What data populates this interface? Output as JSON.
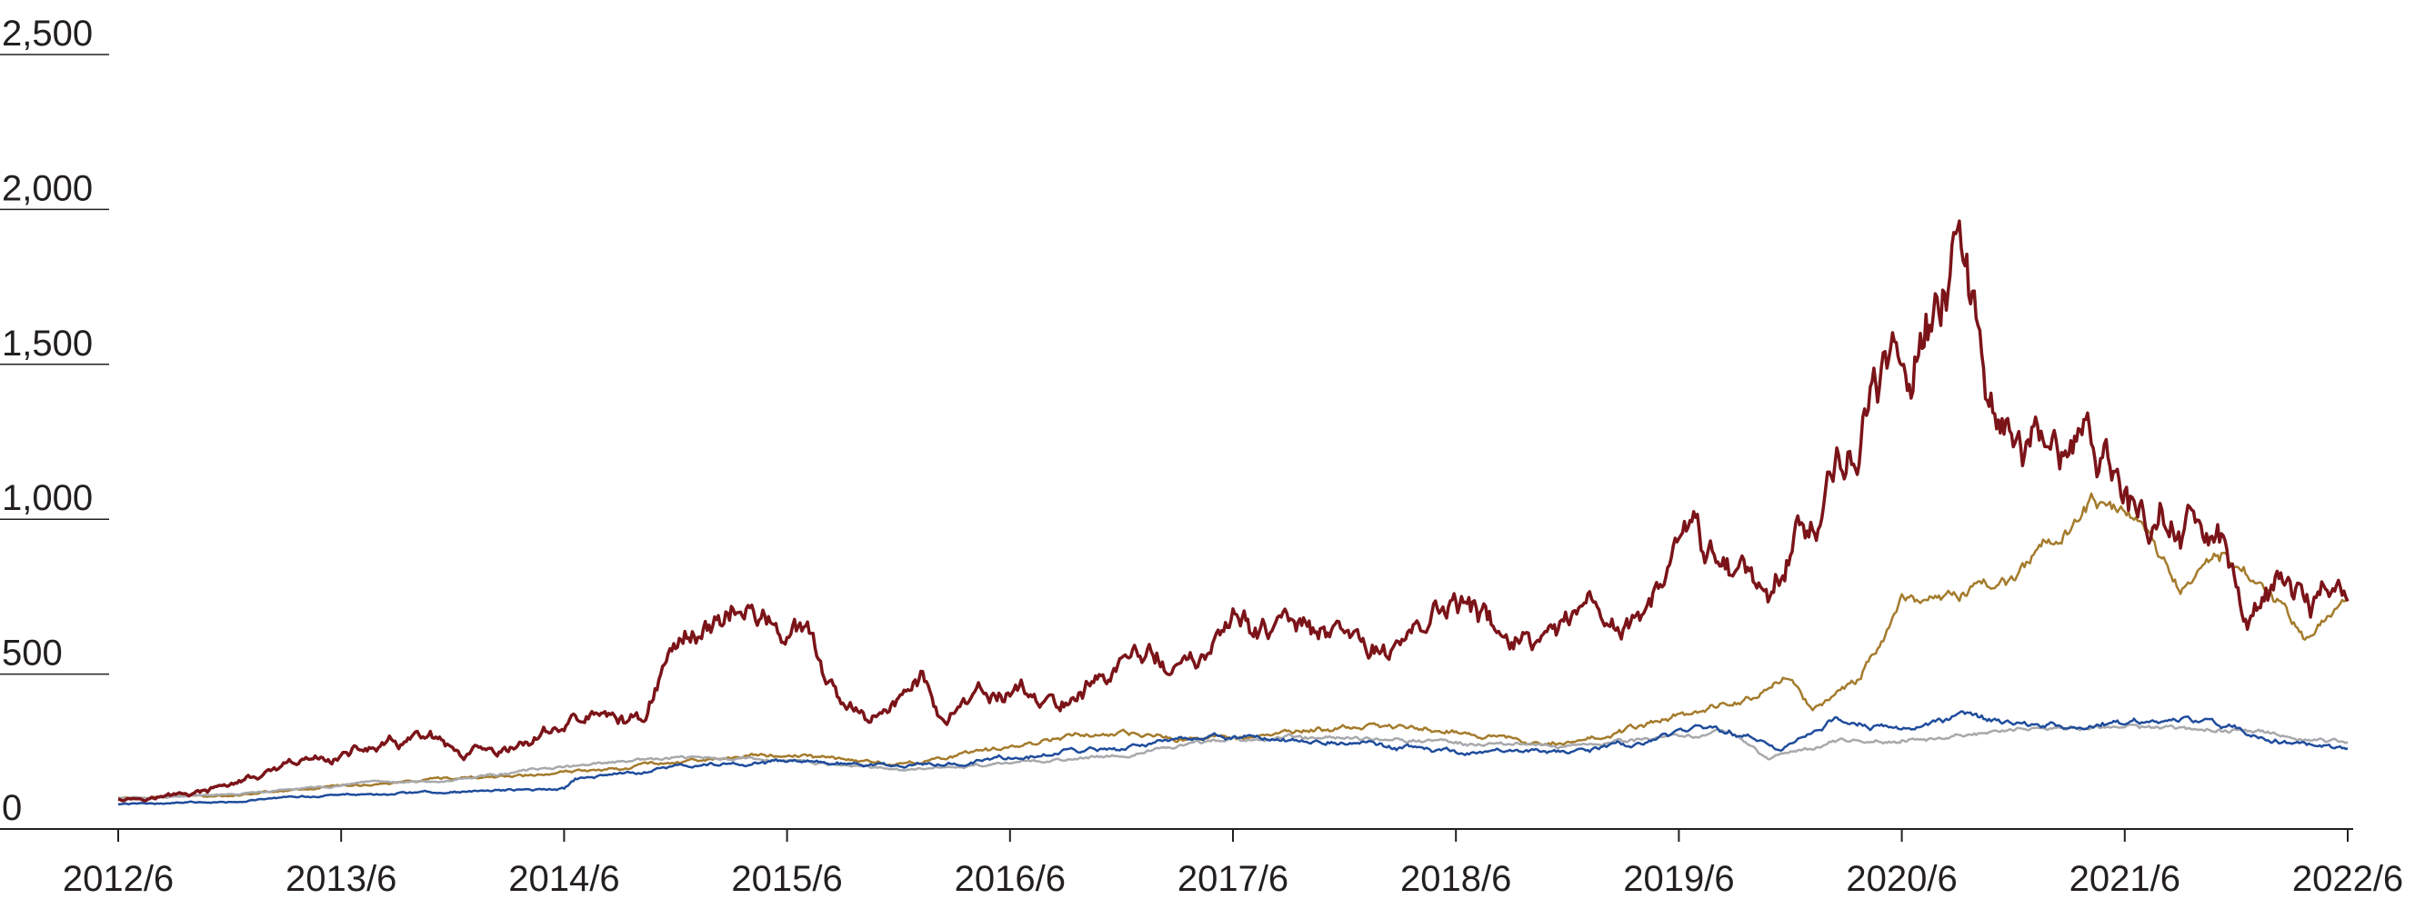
{
  "chart_data": {
    "type": "line",
    "title": "",
    "xlabel": "",
    "ylabel": "",
    "ylim": [
      0,
      2500
    ],
    "xlim": [
      "2012/6",
      "2022/6"
    ],
    "y_ticks": [
      {
        "value": 0,
        "label": "0"
      },
      {
        "value": 500,
        "label": "500"
      },
      {
        "value": 1000,
        "label": "1,000"
      },
      {
        "value": 1500,
        "label": "1,500"
      },
      {
        "value": 2000,
        "label": "2,000"
      },
      {
        "value": 2500,
        "label": "2,500"
      }
    ],
    "x_ticks": [
      "2012/6",
      "2013/6",
      "2014/6",
      "2015/6",
      "2016/6",
      "2017/6",
      "2018/6",
      "2019/6",
      "2020/6",
      "2021/6",
      "2022/6"
    ],
    "grid": false,
    "legend": "none",
    "series": [
      {
        "color": "#7b1419",
        "stroke": 3.5,
        "x": [
          2012.5,
          2012.7,
          2012.9,
          2013.0,
          2013.2,
          2013.35,
          2013.5,
          2013.7,
          2013.9,
          2014.05,
          2014.1,
          2014.2,
          2014.45,
          2014.6,
          2014.85,
          2014.95,
          2015.1,
          2015.25,
          2015.45,
          2015.6,
          2015.75,
          2015.85,
          2016.0,
          2016.1,
          2016.2,
          2016.4,
          2016.55,
          2016.7,
          2016.9,
          2017.1,
          2017.3,
          2017.55,
          2017.8,
          2018.0,
          2018.2,
          2018.35,
          2018.5,
          2018.7,
          2018.9,
          2019.1,
          2019.2,
          2019.4,
          2019.55,
          2019.75,
          2019.9,
          2020.1,
          2020.3,
          2020.5,
          2020.6,
          2020.75,
          2020.85,
          2020.95,
          2021.05,
          2021.15,
          2021.25,
          2021.35,
          2021.5,
          2021.6,
          2021.8,
          2021.95,
          2022.05,
          2022.2,
          2022.35,
          2022.5
        ],
        "y": [
          100,
          105,
          120,
          145,
          180,
          215,
          240,
          265,
          290,
          215,
          235,
          220,
          320,
          360,
          350,
          540,
          650,
          720,
          650,
          600,
          380,
          350,
          420,
          480,
          360,
          420,
          450,
          390,
          490,
          570,
          510,
          670,
          640,
          600,
          580,
          680,
          720,
          640,
          570,
          680,
          640,
          740,
          930,
          860,
          780,
          1050,
          1250,
          1500,
          1700,
          1800,
          1550,
          1400,
          1250,
          1200,
          1150,
          1250,
          1100,
          1000,
          1000,
          850,
          700,
          780,
          730,
          760
        ]
      },
      {
        "color": "#a47b2c",
        "stroke": 2.5,
        "x": [
          2012.5,
          2013.0,
          2013.5,
          2014.0,
          2014.5,
          2015.0,
          2015.5,
          2016.0,
          2016.4,
          2016.8,
          2017.3,
          2017.9,
          2018.2,
          2018.5,
          2018.8,
          2019.2,
          2019.5,
          2019.8,
          2020.0,
          2020.1,
          2020.3,
          2020.5,
          2020.75,
          2021.0,
          2021.15,
          2021.35,
          2021.55,
          2021.75,
          2021.95,
          2022.1,
          2022.3,
          2022.5
        ],
        "y": [
          100,
          110,
          140,
          160,
          180,
          220,
          240,
          210,
          250,
          310,
          290,
          320,
          330,
          320,
          280,
          300,
          370,
          420,
          490,
          390,
          470,
          750,
          760,
          810,
          920,
          1040,
          980,
          800,
          900,
          810,
          620,
          750
        ]
      },
      {
        "color": "#a7a9ac",
        "stroke": 2.5,
        "x": [
          2012.5,
          2013.0,
          2013.5,
          2014.0,
          2014.5,
          2015.0,
          2015.5,
          2016.0,
          2016.5,
          2017.0,
          2017.5,
          2018.0,
          2018.5,
          2019.0,
          2019.5,
          2019.75,
          2019.9,
          2020.2,
          2020.6,
          2021.0,
          2021.5,
          2022.0,
          2022.5
        ],
        "y": [
          100,
          110,
          140,
          160,
          200,
          230,
          220,
          190,
          210,
          240,
          290,
          300,
          280,
          270,
          300,
          310,
          230,
          280,
          290,
          320,
          330,
          320,
          280
        ]
      },
      {
        "color": "#1f4c9c",
        "stroke": 2.5,
        "x": [
          2012.5,
          2013.0,
          2013.5,
          2014.0,
          2014.5,
          2014.55,
          2015.0,
          2015.5,
          2016.0,
          2016.5,
          2017.0,
          2017.5,
          2018.0,
          2018.3,
          2018.6,
          2019.0,
          2019.3,
          2019.6,
          2019.85,
          2019.95,
          2020.2,
          2020.5,
          2020.8,
          2021.0,
          2021.2,
          2021.5,
          2021.8,
          2022.0,
          2022.25,
          2022.5
        ],
        "y": [
          80,
          90,
          110,
          120,
          130,
          160,
          200,
          220,
          200,
          230,
          260,
          300,
          280,
          260,
          240,
          250,
          270,
          330,
          300,
          250,
          350,
          320,
          370,
          340,
          330,
          340,
          350,
          320,
          280,
          250
        ]
      }
    ]
  }
}
